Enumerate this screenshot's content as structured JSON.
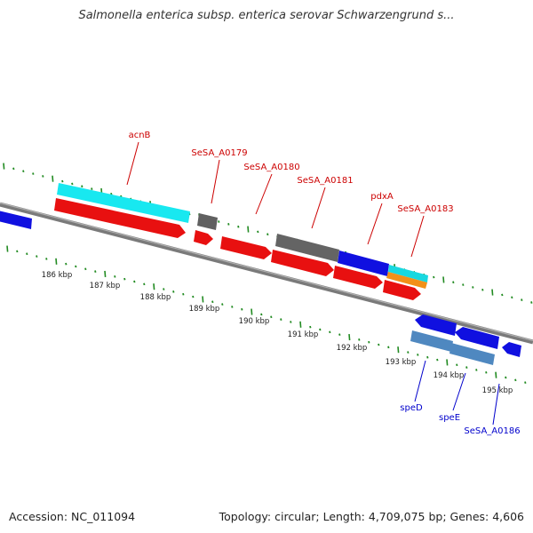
{
  "title": "Salmonella enterica subsp. enterica serovar Schwarzengrund s...",
  "footer": {
    "accession": "Accession: NC_011094",
    "summary": "Topology: circular; Length: 4,709,075 bp; Genes: 4,606"
  },
  "colors": {
    "backbone": "#808080",
    "tick": "#228b22",
    "label_forward": "#cc0000",
    "label_reverse": "#0000cc"
  },
  "scale": {
    "unit": "kbp",
    "ticks": [
      {
        "label": "186 kbp"
      },
      {
        "label": "187 kbp"
      },
      {
        "label": "188 kbp"
      },
      {
        "label": "189 kbp"
      },
      {
        "label": "190 kbp"
      },
      {
        "label": "191 kbp"
      },
      {
        "label": "192 kbp"
      },
      {
        "label": "193 kbp"
      },
      {
        "label": "194 kbp"
      },
      {
        "label": "195 kbp"
      }
    ]
  },
  "genes": [
    {
      "name": "acnB",
      "strand": "forward",
      "color": "red"
    },
    {
      "name": "SeSA_A0179",
      "strand": "forward",
      "color": "red"
    },
    {
      "name": "SeSA_A0180",
      "strand": "forward",
      "color": "red"
    },
    {
      "name": "SeSA_A0181",
      "strand": "forward",
      "color": "red"
    },
    {
      "name": "pdxA",
      "strand": "forward",
      "color": "red"
    },
    {
      "name": "SeSA_A0183",
      "strand": "forward",
      "color": "red"
    },
    {
      "name": "speD",
      "strand": "reverse",
      "color": "blue"
    },
    {
      "name": "speE",
      "strand": "reverse",
      "color": "blue"
    },
    {
      "name": "SeSA_A0186",
      "strand": "reverse",
      "color": "blue"
    }
  ]
}
